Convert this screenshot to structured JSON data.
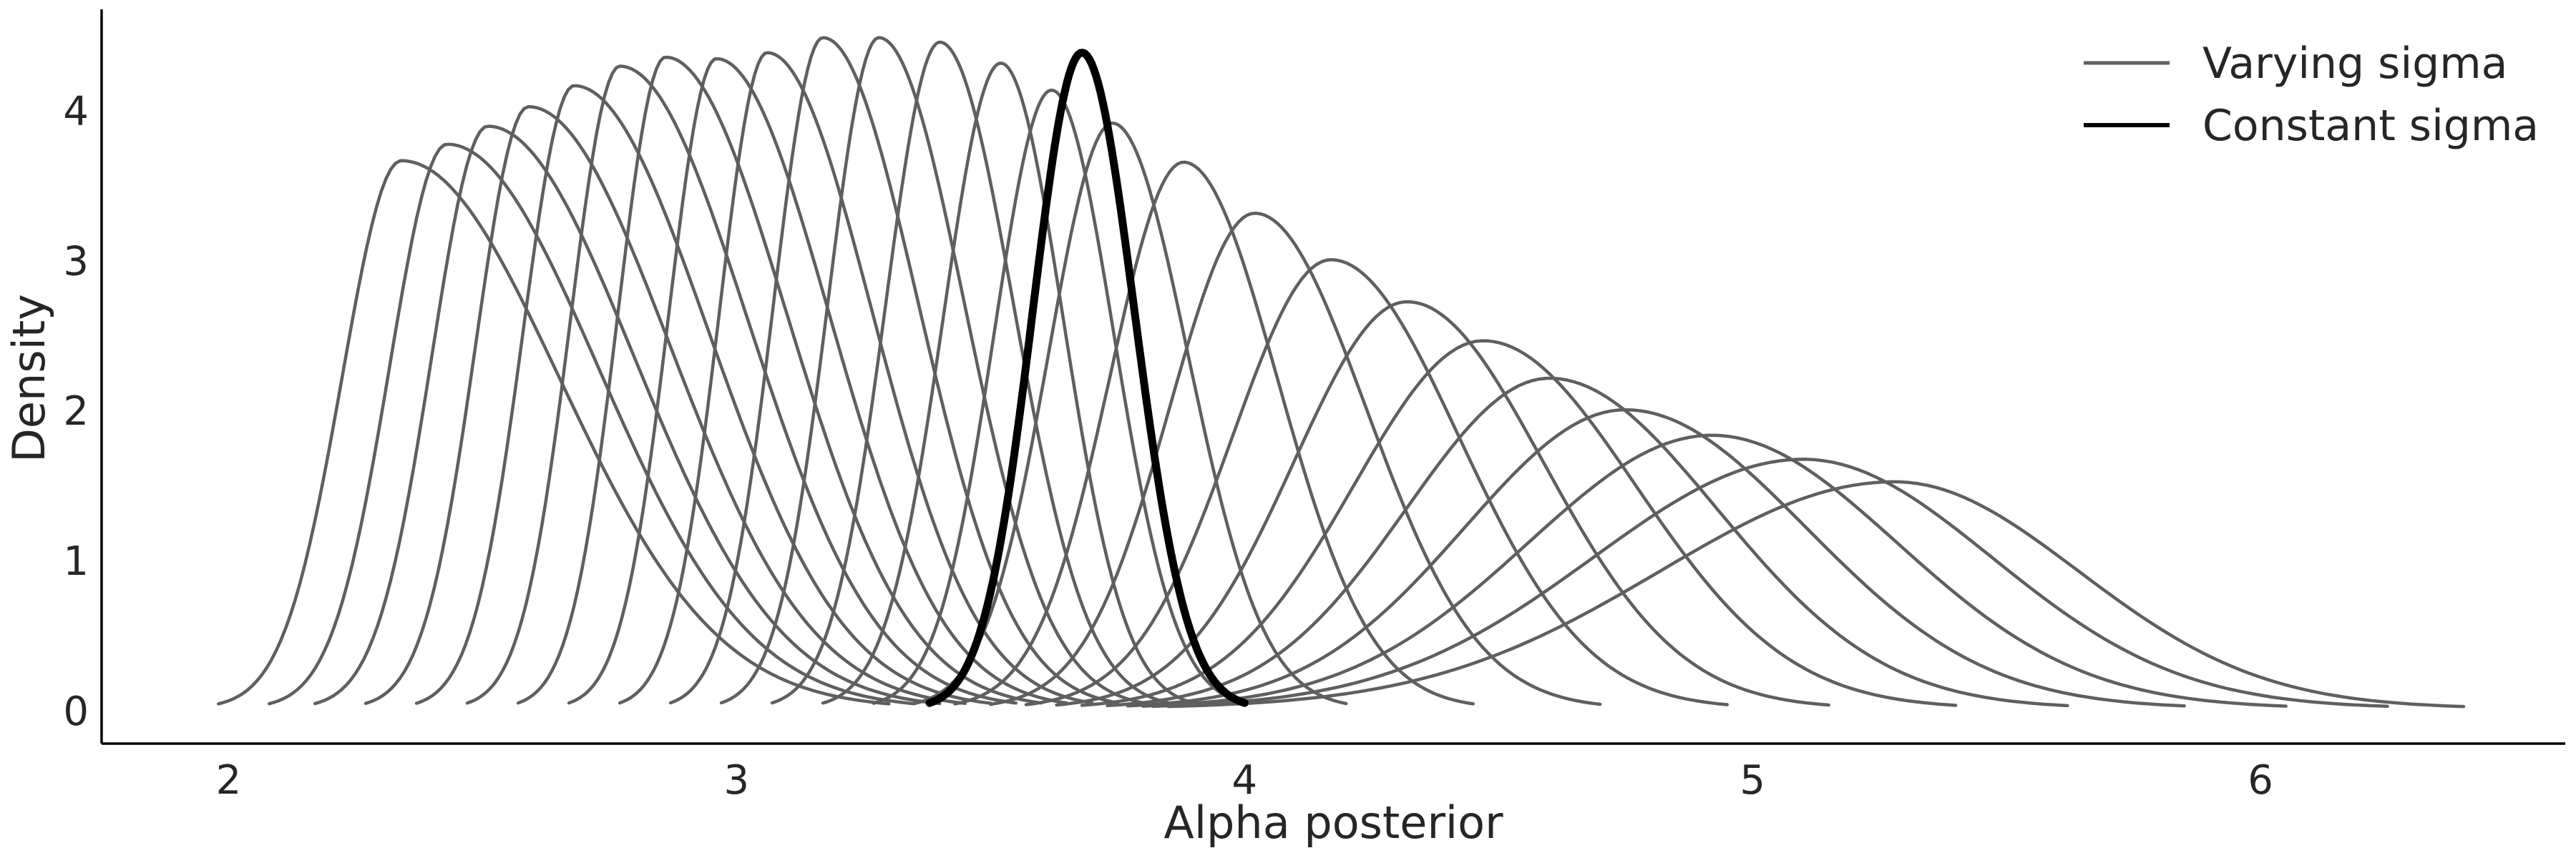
{
  "chart_data": {
    "type": "line",
    "title": "",
    "xlabel": "Alpha posterior",
    "ylabel": "Density",
    "xlim": [
      1.75,
      6.6
    ],
    "ylim": [
      -0.22,
      4.65
    ],
    "xticks": [
      2,
      3,
      4,
      5,
      6
    ],
    "yticks": [
      0,
      1,
      2,
      3,
      4
    ],
    "grid": false,
    "legend_position": "top-right",
    "colors": {
      "varying": "#5f5f5f",
      "constant": "#000000"
    },
    "legend": [
      {
        "label": "Varying sigma",
        "color": "#5f5f5f",
        "kind": "varying"
      },
      {
        "label": "Constant sigma",
        "color": "#000000",
        "kind": "constant"
      }
    ],
    "series": [
      {
        "name": "Varying sigma",
        "kind": "varying",
        "peak_x": 2.34,
        "peak_density": 3.65,
        "x_min": 1.98,
        "x_max": 3.3
      },
      {
        "name": "Varying sigma",
        "kind": "varying",
        "peak_x": 2.43,
        "peak_density": 3.76,
        "x_min": 2.08,
        "x_max": 3.35
      },
      {
        "name": "Varying sigma",
        "kind": "varying",
        "peak_x": 2.51,
        "peak_density": 3.88,
        "x_min": 2.17,
        "x_max": 3.4
      },
      {
        "name": "Varying sigma",
        "kind": "varying",
        "peak_x": 2.59,
        "peak_density": 4.01,
        "x_min": 2.27,
        "x_max": 3.45
      },
      {
        "name": "Varying sigma",
        "kind": "varying",
        "peak_x": 2.68,
        "peak_density": 4.15,
        "x_min": 2.37,
        "x_max": 3.5
      },
      {
        "name": "Varying sigma",
        "kind": "varying",
        "peak_x": 2.77,
        "peak_density": 4.28,
        "x_min": 2.47,
        "x_max": 3.55
      },
      {
        "name": "Varying sigma",
        "kind": "varying",
        "peak_x": 2.86,
        "peak_density": 4.34,
        "x_min": 2.57,
        "x_max": 3.6
      },
      {
        "name": "Varying sigma",
        "kind": "varying",
        "peak_x": 2.96,
        "peak_density": 4.33,
        "x_min": 2.67,
        "x_max": 3.65
      },
      {
        "name": "Varying sigma",
        "kind": "varying",
        "peak_x": 3.06,
        "peak_density": 4.37,
        "x_min": 2.77,
        "x_max": 3.7
      },
      {
        "name": "Varying sigma",
        "kind": "varying",
        "peak_x": 3.17,
        "peak_density": 4.47,
        "x_min": 2.87,
        "x_max": 3.75
      },
      {
        "name": "Varying sigma",
        "kind": "varying",
        "peak_x": 3.28,
        "peak_density": 4.47,
        "x_min": 2.97,
        "x_max": 3.8
      },
      {
        "name": "Varying sigma",
        "kind": "varying",
        "peak_x": 3.4,
        "peak_density": 4.44,
        "x_min": 3.07,
        "x_max": 3.85
      },
      {
        "name": "Varying sigma",
        "kind": "varying",
        "peak_x": 3.52,
        "peak_density": 4.3,
        "x_min": 3.17,
        "x_max": 3.9
      },
      {
        "name": "Varying sigma",
        "kind": "varying",
        "peak_x": 3.62,
        "peak_density": 4.12,
        "x_min": 3.27,
        "x_max": 4.0
      },
      {
        "name": "Varying sigma",
        "kind": "varying",
        "peak_x": 3.74,
        "peak_density": 3.9,
        "x_min": 3.35,
        "x_max": 4.2
      },
      {
        "name": "Varying sigma",
        "kind": "varying",
        "peak_x": 3.88,
        "peak_density": 3.64,
        "x_min": 3.43,
        "x_max": 4.45
      },
      {
        "name": "Varying sigma",
        "kind": "varying",
        "peak_x": 4.02,
        "peak_density": 3.3,
        "x_min": 3.5,
        "x_max": 4.7
      },
      {
        "name": "Varying sigma",
        "kind": "varying",
        "peak_x": 4.17,
        "peak_density": 2.99,
        "x_min": 3.57,
        "x_max": 4.95
      },
      {
        "name": "Varying sigma",
        "kind": "varying",
        "peak_x": 4.32,
        "peak_density": 2.71,
        "x_min": 3.63,
        "x_max": 5.15
      },
      {
        "name": "Varying sigma",
        "kind": "varying",
        "peak_x": 4.47,
        "peak_density": 2.45,
        "x_min": 3.68,
        "x_max": 5.4
      },
      {
        "name": "Varying sigma",
        "kind": "varying",
        "peak_x": 4.6,
        "peak_density": 2.2,
        "x_min": 3.73,
        "x_max": 5.62
      },
      {
        "name": "Varying sigma",
        "kind": "varying",
        "peak_x": 4.75,
        "peak_density": 1.99,
        "x_min": 3.77,
        "x_max": 5.85
      },
      {
        "name": "Varying sigma",
        "kind": "varying",
        "peak_x": 4.92,
        "peak_density": 1.82,
        "x_min": 3.8,
        "x_max": 6.05
      },
      {
        "name": "Varying sigma",
        "kind": "varying",
        "peak_x": 5.1,
        "peak_density": 1.66,
        "x_min": 3.82,
        "x_max": 6.25
      },
      {
        "name": "Varying sigma",
        "kind": "varying",
        "peak_x": 5.28,
        "peak_density": 1.51,
        "x_min": 3.85,
        "x_max": 6.4
      },
      {
        "name": "Constant sigma",
        "kind": "constant",
        "peak_x": 3.68,
        "peak_density": 4.37,
        "x_min": 3.38,
        "x_max": 4.0
      }
    ]
  }
}
